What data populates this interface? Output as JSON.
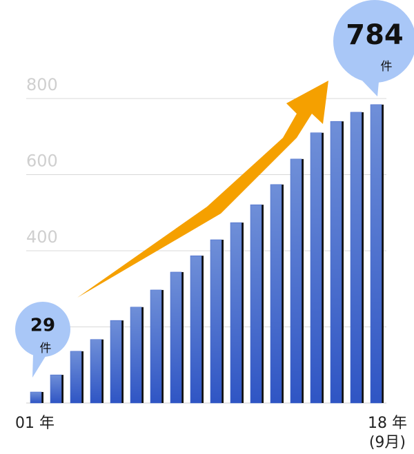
{
  "chart_data": {
    "type": "bar",
    "categories": [
      "01 年",
      null,
      null,
      null,
      null,
      null,
      null,
      null,
      null,
      null,
      null,
      null,
      null,
      null,
      null,
      null,
      null,
      "18 年"
    ],
    "values": [
      29,
      74,
      136,
      167,
      217,
      252,
      297,
      344,
      387,
      429,
      474,
      521,
      574,
      641,
      710,
      740,
      764,
      784
    ],
    "color": "#3b62cc",
    "ylim": [
      0,
      800
    ],
    "yticks": [
      200,
      400,
      600,
      800
    ],
    "grid": true,
    "unit": "件",
    "annotation": "(9月)"
  }
}
